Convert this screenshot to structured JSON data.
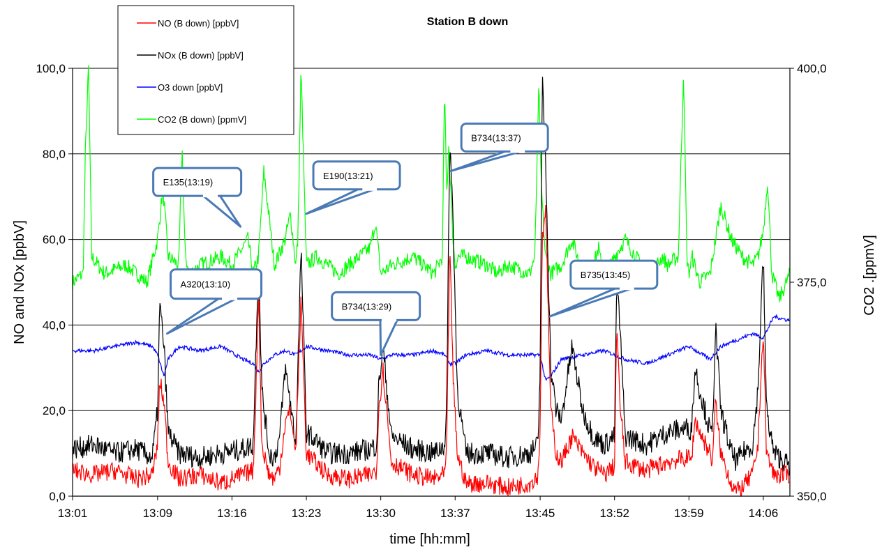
{
  "chart_data": {
    "type": "line",
    "title": "Station B down",
    "xlabel": "time [hh:mm]",
    "ylabel_left": "NO and NOx [ppbV]",
    "ylabel_right": "CO2 .[ppmV]",
    "x_ticks": [
      "13:01",
      "13:09",
      "13:16",
      "13:23",
      "13:30",
      "13:37",
      "13:45",
      "13:52",
      "13:59",
      "14:06"
    ],
    "x_tick_minutes": [
      0,
      8,
      15,
      22,
      29,
      36,
      44,
      51,
      58,
      65
    ],
    "xlim_minutes": [
      0,
      67.5
    ],
    "left_ticks": [
      "0,0",
      "20,0",
      "40,0",
      "60,0",
      "80,0",
      "100,0"
    ],
    "left_tick_values": [
      0,
      20,
      40,
      60,
      80,
      100
    ],
    "ylim_left": [
      0,
      100
    ],
    "right_ticks": [
      "350,0",
      "375,0",
      "400,0"
    ],
    "right_tick_values": [
      350,
      375,
      400
    ],
    "ylim_right": [
      350,
      400
    ],
    "grid": true,
    "legend_position": "top-left",
    "series": [
      {
        "name": "NO (B down) [ppbV]",
        "axis": "left",
        "color": "#ff0000",
        "x": [
          0,
          2,
          4,
          6,
          7.5,
          8,
          8.2,
          8.6,
          9,
          10,
          12,
          14,
          16,
          17,
          17.2,
          17.5,
          17.8,
          18.5,
          19,
          19.5,
          20,
          20.5,
          21,
          21.2,
          21.5,
          22,
          24,
          26,
          28,
          28.6,
          28.8,
          29.2,
          30,
          32,
          34,
          35,
          35.2,
          35.5,
          35.8,
          36.2,
          37,
          39,
          41,
          43,
          43.8,
          44,
          44.2,
          44.5,
          45,
          45.5,
          46,
          47,
          48,
          49,
          50,
          51,
          51.2,
          51.5,
          52,
          54,
          56,
          58,
          58.2,
          58.6,
          59,
          60,
          60.2,
          60.5,
          61,
          62,
          62.5,
          63,
          64,
          64.5,
          64.8,
          65,
          65.3,
          66,
          67.5
        ],
        "values": [
          6,
          5,
          6,
          4,
          5,
          12,
          27,
          22,
          8,
          4,
          5,
          3,
          5,
          6,
          20,
          48,
          12,
          5,
          4,
          7,
          17,
          20,
          10,
          25,
          46,
          10,
          5,
          4,
          5,
          6,
          20,
          30,
          8,
          5,
          4,
          5,
          10,
          60,
          28,
          10,
          3,
          3,
          2,
          3,
          5,
          16,
          60,
          68,
          20,
          10,
          8,
          14,
          10,
          7,
          5,
          7,
          40,
          22,
          8,
          6,
          8,
          9,
          8,
          18,
          15,
          10,
          8,
          22,
          10,
          3,
          1,
          2,
          5,
          12,
          30,
          38,
          10,
          5,
          5
        ]
      },
      {
        "name": "NOx (B down) [ppbV]",
        "axis": "left",
        "color": "#000000",
        "x": [
          0,
          2,
          4,
          6,
          7.5,
          8,
          8.2,
          8.6,
          9,
          10,
          12,
          14,
          16,
          17,
          17.2,
          17.5,
          17.8,
          18.5,
          19,
          19.5,
          20,
          20.5,
          21,
          21.2,
          21.5,
          22,
          24,
          26,
          28,
          28.6,
          28.8,
          29.2,
          30,
          32,
          34,
          35,
          35.2,
          35.5,
          35.8,
          36.2,
          37,
          39,
          41,
          43,
          43.8,
          44,
          44.2,
          44.5,
          45,
          45.5,
          46,
          47,
          48,
          49,
          50,
          51,
          51.2,
          51.5,
          52,
          54,
          56,
          58,
          58.2,
          58.6,
          59,
          60,
          60.2,
          60.5,
          61,
          62,
          62.5,
          63,
          64,
          64.5,
          64.8,
          65,
          65.3,
          66,
          67.5
        ],
        "values": [
          11,
          12,
          10,
          11,
          9,
          20,
          45,
          35,
          15,
          10,
          9,
          10,
          11,
          12,
          30,
          57,
          25,
          10,
          9,
          14,
          30,
          22,
          12,
          30,
          58,
          15,
          10,
          10,
          11,
          12,
          25,
          35,
          14,
          11,
          10,
          12,
          20,
          84,
          65,
          25,
          10,
          10,
          9,
          10,
          12,
          30,
          97,
          80,
          30,
          20,
          18,
          35,
          20,
          14,
          12,
          14,
          50,
          40,
          14,
          12,
          15,
          16,
          15,
          30,
          25,
          15,
          14,
          40,
          20,
          10,
          8,
          10,
          12,
          25,
          45,
          56,
          20,
          10,
          7
        ]
      },
      {
        "name": "O3 down [ppbV]",
        "axis": "left",
        "color": "#0000ff",
        "x": [
          0,
          2,
          4,
          6,
          7.5,
          8,
          8.6,
          9,
          10,
          12,
          14,
          16,
          17,
          17.5,
          18,
          19,
          20,
          21,
          22,
          24,
          26,
          28,
          29,
          30,
          32,
          34,
          35,
          35.5,
          36,
          37,
          39,
          41,
          43,
          44,
          44.5,
          45,
          46,
          48,
          50,
          51,
          52,
          54,
          56,
          58,
          60,
          61,
          62,
          64,
          65,
          66,
          67.5
        ],
        "values": [
          34,
          34,
          35,
          36,
          35,
          33,
          28,
          32,
          35,
          34,
          35,
          32,
          31,
          29,
          31,
          33,
          34,
          33,
          35,
          34,
          33,
          33,
          32,
          33,
          33,
          34,
          33,
          31,
          31,
          33,
          34,
          33,
          33,
          33,
          27,
          28,
          32,
          33,
          34,
          33,
          32,
          31,
          33,
          35,
          32,
          35,
          36,
          38,
          37,
          42,
          41
        ]
      },
      {
        "name": "CO2 (B down) [ppmV]",
        "axis": "right",
        "color": "#00ff00",
        "x": [
          0,
          1,
          1.2,
          1.5,
          1.8,
          3,
          5,
          7,
          8,
          8.5,
          9,
          10,
          10.3,
          10.6,
          11,
          12,
          14,
          15,
          16,
          16.5,
          17,
          17.5,
          18,
          19,
          20,
          20.5,
          21,
          21.2,
          21.5,
          22,
          23,
          25,
          27,
          28,
          28.5,
          29,
          30,
          32,
          34,
          34.8,
          35,
          35.2,
          35.4,
          35.8,
          36,
          36.3,
          37,
          39,
          40,
          41,
          43,
          43.5,
          43.9,
          44,
          44.2,
          44.5,
          45,
          46,
          47,
          47.5,
          48,
          49,
          49.5,
          50,
          51,
          52,
          54,
          55,
          55.5,
          56,
          57,
          57.5,
          57.8,
          58,
          58.3,
          59,
          60,
          61,
          62,
          63,
          64,
          64.5,
          65,
          65.4,
          65.8,
          66.5,
          67.5
        ],
        "values": [
          375,
          376,
          390,
          400,
          378,
          376,
          377,
          375,
          380,
          386,
          378,
          377,
          391,
          378,
          376,
          377,
          378,
          377,
          379,
          380,
          376,
          378,
          388,
          377,
          380,
          383,
          377,
          380,
          400,
          377,
          378,
          376,
          378,
          379,
          382,
          376,
          377,
          378,
          376,
          378,
          398,
          385,
          391,
          380,
          377,
          378,
          378,
          377,
          376,
          377,
          376,
          378,
          399,
          390,
          384,
          378,
          376,
          377,
          380,
          378,
          376,
          377,
          379,
          375,
          378,
          380,
          376,
          377,
          378,
          377,
          378,
          400,
          378,
          376,
          378,
          375,
          376,
          384,
          380,
          378,
          377,
          378,
          381,
          387,
          376,
          373,
          376
        ]
      }
    ],
    "annotations": [
      {
        "text": "A320(13:10)",
        "target_minute": 8.9,
        "target_value": 38
      },
      {
        "text": "E135(13:19)",
        "target_minute": 15.8,
        "target_value": 63
      },
      {
        "text": "E190(13:21)",
        "target_minute": 22.0,
        "target_value": 66
      },
      {
        "text": "B734(13:29)",
        "target_minute": 29.0,
        "target_value": 33
      },
      {
        "text": "B734(13:37)",
        "target_minute": 35.6,
        "target_value": 76
      },
      {
        "text": "B735(13:45)",
        "target_minute": 44.9,
        "target_value": 42
      }
    ]
  }
}
